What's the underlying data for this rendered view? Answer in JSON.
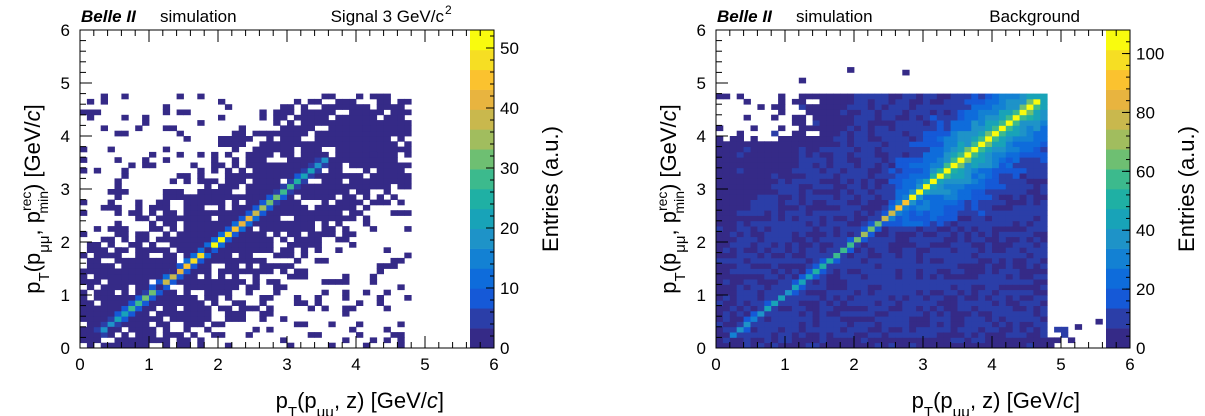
{
  "colormap": [
    "#352a87",
    "#2b3ea8",
    "#1559d7",
    "#0e6cdb",
    "#1381d3",
    "#1e93c8",
    "#18a3b8",
    "#1fb0a4",
    "#3cba8d",
    "#6ebf72",
    "#a1bd5e",
    "#c9b84d",
    "#e8b43f",
    "#fbc22f",
    "#f6de23",
    "#f9fb0e"
  ],
  "chart_data": [
    {
      "type": "heatmap",
      "header_left_bold": "Belle II",
      "header_left": "simulation",
      "header_right": "Signal 3 GeV/c",
      "header_right_sup": "2",
      "xlabel": "p_T(p_μμ, z) [GeV/c]",
      "ylabel": "p_T(p_μμ, p^rec_min) [GeV/c]",
      "colorbar_label": "Entries (a.u.)",
      "xlim": [
        0,
        6
      ],
      "ylim": [
        0,
        6
      ],
      "zlim": [
        0,
        53
      ],
      "xticks": [
        "0",
        "1",
        "2",
        "3",
        "4",
        "5",
        "6"
      ],
      "yticks": [
        "0",
        "1",
        "2",
        "3",
        "4",
        "5",
        "6"
      ],
      "zticks": [
        "0",
        "10",
        "20",
        "30",
        "40",
        "50"
      ],
      "zticks_values": [
        0,
        10,
        20,
        30,
        40,
        50
      ],
      "distribution": {
        "diagonal_peak": 52,
        "diagonal_range": [
          0.3,
          3.6
        ],
        "upper_edge_y": 4.8,
        "right_edge_x": 4.8
      }
    },
    {
      "type": "heatmap",
      "header_left_bold": "Belle II",
      "header_left": "simulation",
      "header_right": "Background",
      "header_right_sup": "",
      "xlabel": "p_T(p_μμ, z) [GeV/c]",
      "ylabel": "p_T(p_μμ, p^rec_min) [GeV/c]",
      "colorbar_label": "Entries (a.u.)",
      "xlim": [
        0,
        6
      ],
      "ylim": [
        0,
        6
      ],
      "zlim": [
        0,
        108
      ],
      "xticks": [
        "0",
        "1",
        "2",
        "3",
        "4",
        "5",
        "6"
      ],
      "yticks": [
        "0",
        "1",
        "2",
        "3",
        "4",
        "5",
        "6"
      ],
      "zticks": [
        "0",
        "20",
        "40",
        "60",
        "80",
        "100"
      ],
      "zticks_values": [
        0,
        20,
        40,
        60,
        80,
        100
      ],
      "distribution": {
        "diagonal_peak": 105,
        "diagonal_range": [
          0.2,
          4.7
        ],
        "upper_edge_y": 4.85,
        "right_edge_x": 4.85
      }
    }
  ]
}
